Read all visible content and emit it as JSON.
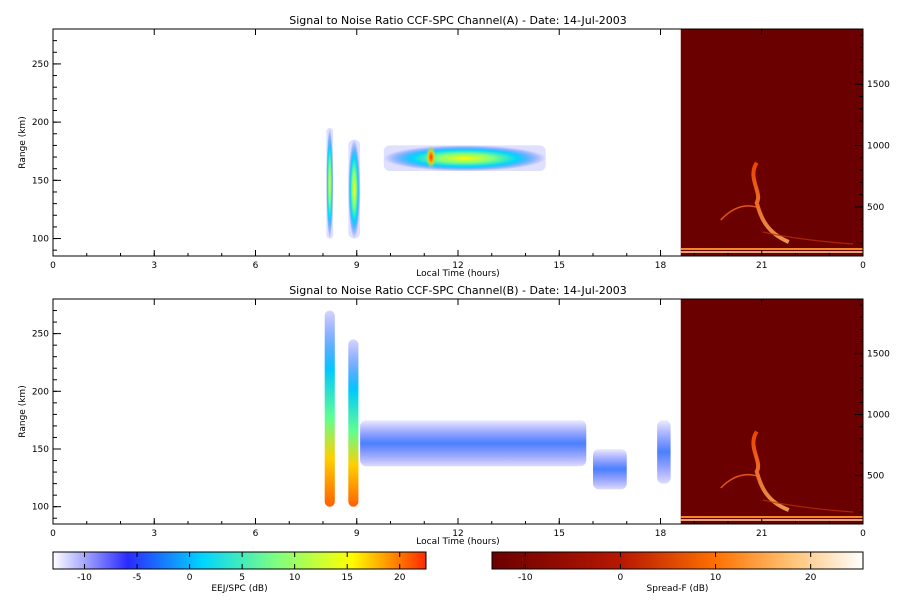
{
  "chart_data": [
    {
      "type": "heatmap",
      "title": "Signal to Noise Ratio CCF-SPC Channel(A) - Date: 14-Jul-2003",
      "xlabel": "Local Time (hours)",
      "ylabel": "Range (km)",
      "xlim": [
        0,
        24
      ],
      "ylim": [
        85,
        280
      ],
      "x_ticks": [
        "0",
        "3",
        "6",
        "9",
        "12",
        "15",
        "18",
        "21",
        "0"
      ],
      "y_ticks": [
        100,
        150,
        200,
        250
      ],
      "right_ylim": [
        100,
        1950
      ],
      "right_ticks": [
        500,
        1000,
        1500
      ],
      "colorbar": "EEJ/SPC (dB)",
      "echoes": [
        {
          "t0": 8.1,
          "t1": 8.3,
          "h0": 100,
          "h1": 195,
          "peak_db": 2
        },
        {
          "t0": 8.75,
          "t1": 9.1,
          "h0": 100,
          "h1": 185,
          "peak_db": 1
        },
        {
          "t0": 9.8,
          "t1": 14.6,
          "h0": 158,
          "h1": 180,
          "peak_db": 8
        },
        {
          "t0": 11.05,
          "t1": 11.35,
          "h0": 160,
          "h1": 180,
          "peak_db": 21
        }
      ],
      "spread_f": {
        "t0": 18.6,
        "t1": 24,
        "plume_top_km": 860
      }
    },
    {
      "type": "heatmap",
      "title": "Signal to Noise Ratio CCF-SPC Channel(B) - Date: 14-Jul-2003",
      "xlabel": "Local Time (hours)",
      "ylabel": "Range (km)",
      "xlim": [
        0,
        24
      ],
      "ylim": [
        85,
        280
      ],
      "x_ticks": [
        "0",
        "3",
        "6",
        "9",
        "12",
        "15",
        "18",
        "21",
        "0"
      ],
      "y_ticks": [
        100,
        150,
        200,
        250
      ],
      "right_ylim": [
        100,
        1950
      ],
      "right_ticks": [
        500,
        1000,
        1500
      ],
      "colorbar": "Spread-F (dB)",
      "echoes": [
        {
          "t0": 8.05,
          "t1": 8.35,
          "h0": 100,
          "h1": 270,
          "peak_db": 18
        },
        {
          "t0": 8.75,
          "t1": 9.05,
          "h0": 100,
          "h1": 245,
          "peak_db": 18
        },
        {
          "t0": 9.1,
          "t1": 15.8,
          "h0": 135,
          "h1": 175,
          "peak_db": -4
        },
        {
          "t0": 16.0,
          "t1": 17.0,
          "h0": 115,
          "h1": 150,
          "peak_db": -6
        },
        {
          "t0": 17.9,
          "t1": 18.3,
          "h0": 120,
          "h1": 175,
          "peak_db": -5
        }
      ],
      "spread_f": {
        "t0": 18.6,
        "t1": 24,
        "plume_top_km": 860
      }
    }
  ],
  "colorbars": [
    {
      "label": "EEJ/SPC (dB)",
      "ticks": [
        "-10",
        "-5",
        "0",
        "5",
        "10",
        "15",
        "20"
      ],
      "min": -13,
      "max": 22.5
    },
    {
      "label": "Spread-F (dB)",
      "ticks": [
        "-10",
        "0",
        "10",
        "20"
      ],
      "min": -13.5,
      "max": 25.5
    }
  ],
  "colors": {
    "spread_bg": "#6b0000",
    "jet": [
      "#ffffff",
      "#2a2aff",
      "#00d5ff",
      "#7fff7f",
      "#ffff00",
      "#ff2a00"
    ],
    "heat": [
      "#6b0000",
      "#c03000",
      "#ff8000",
      "#ffd080",
      "#ffffff"
    ]
  }
}
